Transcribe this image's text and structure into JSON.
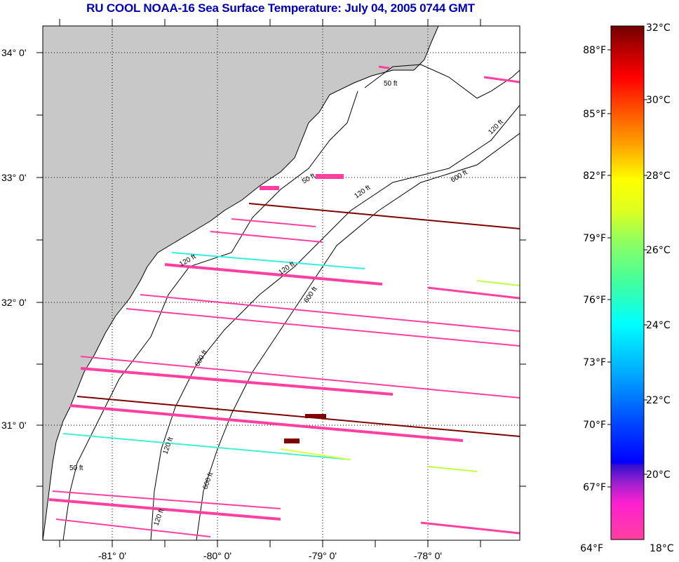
{
  "title": "RU COOL  NOAA-16  Sea Surface Temperature:  July 04, 2005 0744 GMT",
  "map": {
    "lat_labels": [
      "34° 0'",
      "33° 0'",
      "32° 0'",
      "31° 0'"
    ],
    "lon_labels": [
      "-81° 0'",
      "-80° 0'",
      "-79° 0'",
      "-78° 0'"
    ],
    "contour_labels": [
      "50 ft",
      "120 ft",
      "600 ft",
      "50 ft",
      "120 ft",
      "600 ft",
      "120 ft",
      "120 ft",
      "600 ft",
      "50 ft",
      "120 ft",
      "600 ft",
      "120 ft"
    ],
    "land_color": "#c8c8c8"
  },
  "colorbar": {
    "fahrenheit_labels": [
      "88°F",
      "85°F",
      "82°F",
      "79°F",
      "76°F",
      "73°F",
      "70°F",
      "67°F",
      "64°F"
    ],
    "celsius_labels": [
      "32°C",
      "30°C",
      "28°C",
      "26°C",
      "24°C",
      "22°C",
      "20°C",
      "18°C"
    ],
    "range_c": [
      18,
      32
    ],
    "colors": [
      "#ff33aa",
      "#e020e0",
      "#6020c0",
      "#0000ff",
      "#0090ff",
      "#00ffff",
      "#60ff90",
      "#ccff20",
      "#ffff00",
      "#ff9900",
      "#ff2000",
      "#ff0000",
      "#700000"
    ]
  }
}
